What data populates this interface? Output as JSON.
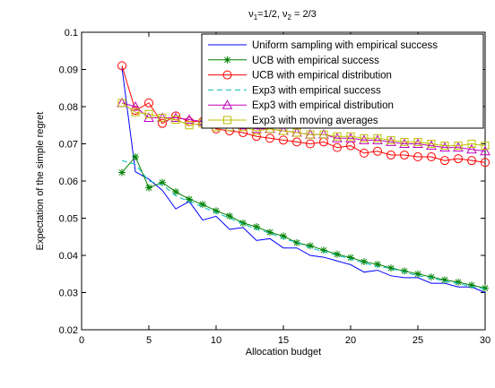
{
  "chart_data": {
    "type": "line",
    "title_main": "ν",
    "title_sub1": "1",
    "title_mid": "=1/2, ν",
    "title_sub2": "2",
    "title_end": " = 2/3",
    "xlabel": "Allocation budget",
    "ylabel": "Expectation of the simple regret",
    "xlim": [
      0,
      30
    ],
    "ylim": [
      0.02,
      0.1
    ],
    "xticks": [
      0,
      5,
      10,
      15,
      20,
      25,
      30
    ],
    "xtick_labels": [
      "0",
      "5",
      "10",
      "15",
      "20",
      "25",
      "30"
    ],
    "yticks": [
      0.02,
      0.03,
      0.04,
      0.05,
      0.06,
      0.07,
      0.08,
      0.09,
      0.1
    ],
    "ytick_labels": [
      "0.02",
      "0.03",
      "0.04",
      "0.05",
      "0.06",
      "0.07",
      "0.08",
      "0.09",
      "0.1"
    ],
    "grid": false,
    "legend_position": "top-right",
    "x": [
      3,
      4,
      5,
      6,
      7,
      8,
      9,
      10,
      11,
      12,
      13,
      14,
      15,
      16,
      17,
      18,
      19,
      20,
      21,
      22,
      23,
      24,
      25,
      26,
      27,
      28,
      29,
      30
    ],
    "series": [
      {
        "name": "Uniform sampling with empirical success",
        "color": "#0000ff",
        "dash": "solid",
        "marker": "none",
        "values": [
          0.0905,
          0.0625,
          0.0605,
          0.0575,
          0.0525,
          0.0545,
          0.0495,
          0.0505,
          0.047,
          0.0475,
          0.044,
          0.0445,
          0.042,
          0.042,
          0.04,
          0.0395,
          0.0385,
          0.0375,
          0.0355,
          0.036,
          0.0345,
          0.034,
          0.034,
          0.0325,
          0.0325,
          0.0315,
          0.0315,
          0.03
        ]
      },
      {
        "name": "UCB with empirical success",
        "color": "#008000",
        "dash": "solid",
        "marker": "star",
        "values": [
          0.0623,
          0.0665,
          0.0582,
          0.0596,
          0.0571,
          0.0551,
          0.0537,
          0.052,
          0.0506,
          0.0487,
          0.0477,
          0.0462,
          0.0452,
          0.0434,
          0.0426,
          0.0414,
          0.0403,
          0.0394,
          0.0383,
          0.0376,
          0.0366,
          0.0358,
          0.035,
          0.0342,
          0.0334,
          0.0328,
          0.032,
          0.0312
        ]
      },
      {
        "name": "UCB with empirical distribution",
        "color": "#ff0000",
        "dash": "solid",
        "marker": "circle",
        "values": [
          0.091,
          0.079,
          0.081,
          0.0755,
          0.0775,
          0.076,
          0.076,
          0.074,
          0.0735,
          0.073,
          0.072,
          0.0715,
          0.071,
          0.0705,
          0.07,
          0.0705,
          0.069,
          0.0695,
          0.0675,
          0.068,
          0.067,
          0.067,
          0.0665,
          0.0665,
          0.0655,
          0.066,
          0.0655,
          0.065
        ]
      },
      {
        "name": "Exp3 with empirical success",
        "color": "#00bfbf",
        "dash": "dashed",
        "marker": "none",
        "values": [
          0.0655,
          0.0645,
          0.06,
          0.059,
          0.056,
          0.0545,
          0.053,
          0.0515,
          0.05,
          0.0485,
          0.047,
          0.046,
          0.0445,
          0.0435,
          0.042,
          0.041,
          0.04,
          0.039,
          0.038,
          0.037,
          0.0365,
          0.0355,
          0.0345,
          0.034,
          0.033,
          0.0325,
          0.0315,
          0.031
        ]
      },
      {
        "name": "Exp3 with empirical distribution",
        "color": "#bf00bf",
        "dash": "solid",
        "marker": "triangle",
        "values": [
          0.081,
          0.08,
          0.077,
          0.077,
          0.077,
          0.0765,
          0.076,
          0.0755,
          0.0745,
          0.075,
          0.074,
          0.074,
          0.0735,
          0.073,
          0.0725,
          0.0725,
          0.0715,
          0.0715,
          0.071,
          0.071,
          0.0705,
          0.07,
          0.07,
          0.0695,
          0.069,
          0.069,
          0.0685,
          0.068
        ]
      },
      {
        "name": "Exp3 with moving averages",
        "color": "#bfbf00",
        "dash": "solid",
        "marker": "square",
        "values": [
          0.081,
          0.0785,
          0.078,
          0.077,
          0.0765,
          0.075,
          0.0755,
          0.0745,
          0.0745,
          0.0745,
          0.0735,
          0.074,
          0.0735,
          0.073,
          0.0725,
          0.0725,
          0.072,
          0.072,
          0.0715,
          0.0715,
          0.071,
          0.0705,
          0.0705,
          0.07,
          0.0695,
          0.0695,
          0.07,
          0.0695
        ]
      }
    ]
  }
}
